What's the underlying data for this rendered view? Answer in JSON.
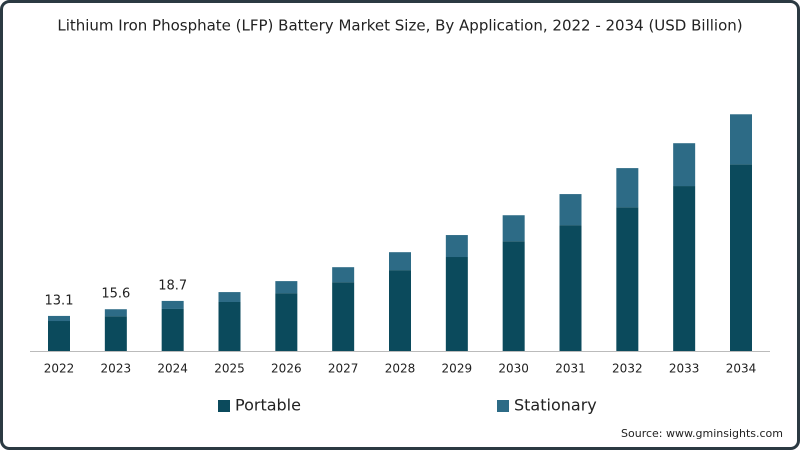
{
  "chart_data": {
    "type": "stacked_bar",
    "title": "Lithium Iron Phosphate (LFP) Battery Market Size, By Application, 2022 - 2034 (USD Billion)",
    "categories": [
      "2022",
      "2023",
      "2024",
      "2025",
      "2026",
      "2027",
      "2028",
      "2029",
      "2030",
      "2031",
      "2032",
      "2033",
      "2034"
    ],
    "series": [
      {
        "name": "Portable",
        "color": "#0b4a5c",
        "values": [
          11.2,
          13.0,
          15.7,
          18.3,
          21.6,
          25.7,
          30.2,
          35.1,
          41.0,
          47.0,
          53.7,
          61.6,
          69.7
        ]
      },
      {
        "name": "Stationary",
        "color": "#2d6b86",
        "values": [
          1.9,
          2.6,
          3.0,
          3.7,
          4.5,
          5.6,
          6.7,
          8.2,
          9.7,
          11.6,
          14.6,
          16.0,
          18.7
        ]
      }
    ],
    "total_labels": [
      13.1,
      15.6,
      18.7,
      null,
      null,
      null,
      null,
      null,
      null,
      null,
      null,
      null,
      null
    ],
    "ylim": [
      0,
      90
    ],
    "source": "Source: www.gminsights.com"
  }
}
